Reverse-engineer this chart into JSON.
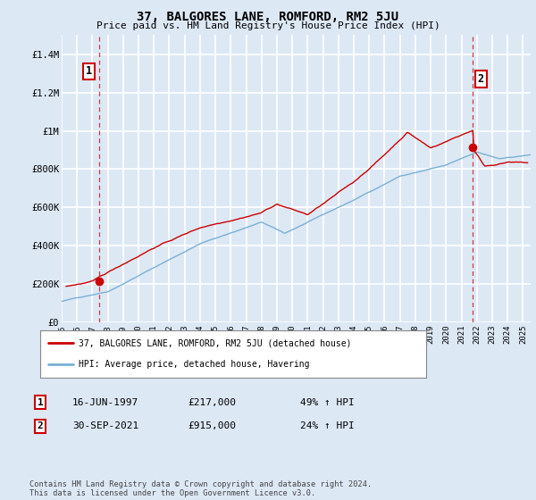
{
  "title": "37, BALGORES LANE, ROMFORD, RM2 5JU",
  "subtitle": "Price paid vs. HM Land Registry's House Price Index (HPI)",
  "ylim": [
    0,
    1500000
  ],
  "yticks": [
    0,
    200000,
    400000,
    600000,
    800000,
    1000000,
    1200000,
    1400000
  ],
  "ytick_labels": [
    "£0",
    "£200K",
    "£400K",
    "£600K",
    "£800K",
    "£1M",
    "£1.2M",
    "£1.4M"
  ],
  "bg_color": "#dde8f5",
  "grid_color": "#ffffff",
  "line1_color": "#cc0000",
  "line2_color": "#7ab0d4",
  "point1_x": 1997.46,
  "point1_y": 217000,
  "point2_x": 2021.75,
  "point2_y": 915000,
  "legend_label1": "37, BALGORES LANE, ROMFORD, RM2 5JU (detached house)",
  "legend_label2": "HPI: Average price, detached house, Havering",
  "note1_num": "1",
  "note1_date": "16-JUN-1997",
  "note1_price": "£217,000",
  "note1_hpi": "49% ↑ HPI",
  "note2_num": "2",
  "note2_date": "30-SEP-2021",
  "note2_price": "£915,000",
  "note2_hpi": "24% ↑ HPI",
  "footer": "Contains HM Land Registry data © Crown copyright and database right 2024.\nThis data is licensed under the Open Government Licence v3.0.",
  "xmin": 1995.0,
  "xmax": 2025.5
}
